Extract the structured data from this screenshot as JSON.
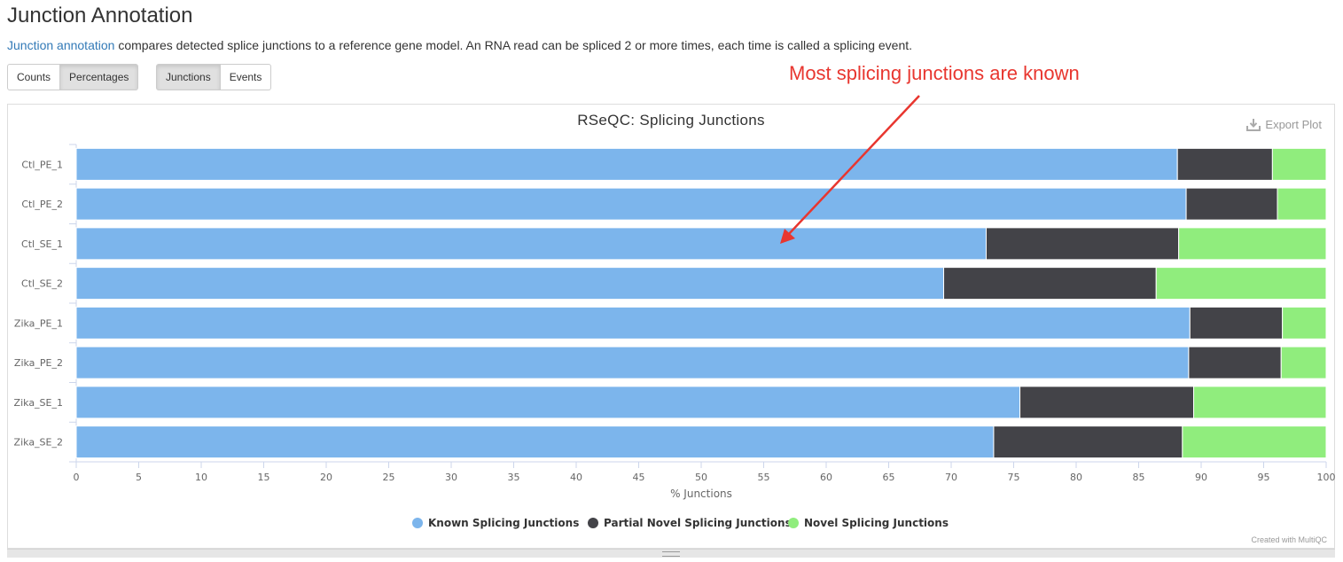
{
  "page": {
    "title": "Junction Annotation",
    "description_link": "Junction annotation",
    "description_rest": " compares detected splice junctions to a reference gene model. An RNA read can be spliced 2 or more times, each time is called a splicing event."
  },
  "buttons": {
    "counts": "Counts",
    "percentages": "Percentages",
    "junctions": "Junctions",
    "events": "Events"
  },
  "annotation": {
    "text": "Most splicing junctions are known",
    "color": "#e8362f"
  },
  "export": {
    "label": "Export Plot",
    "icon": "download-icon"
  },
  "credit": "Created with MultiQC",
  "chart_data": {
    "type": "bar",
    "orientation": "horizontal",
    "stacked": true,
    "title": "RSeQC: Splicing Junctions",
    "xlabel": "% Junctions",
    "xlim": [
      0,
      100
    ],
    "xticks": [
      0,
      5,
      10,
      15,
      20,
      25,
      30,
      35,
      40,
      45,
      50,
      55,
      60,
      65,
      70,
      75,
      80,
      85,
      90,
      95,
      100
    ],
    "categories": [
      "Ctl_PE_1",
      "Ctl_PE_2",
      "Ctl_SE_1",
      "Ctl_SE_2",
      "Zika_PE_1",
      "Zika_PE_2",
      "Zika_SE_1",
      "Zika_SE_2"
    ],
    "series": [
      {
        "name": "Known Splicing Junctions",
        "color": "#7cb5ec",
        "values": [
          88.1,
          88.8,
          72.8,
          69.4,
          89.1,
          89.0,
          75.5,
          73.4
        ]
      },
      {
        "name": "Partial Novel Splicing Junctions",
        "color": "#434348",
        "values": [
          7.6,
          7.3,
          15.4,
          17.0,
          7.4,
          7.4,
          13.9,
          15.1
        ]
      },
      {
        "name": "Novel Splicing Junctions",
        "color": "#90ed7d",
        "values": [
          4.3,
          3.9,
          11.8,
          13.6,
          3.5,
          3.6,
          10.6,
          11.5
        ]
      }
    ],
    "legend_position": "bottom-center",
    "grid": false
  }
}
